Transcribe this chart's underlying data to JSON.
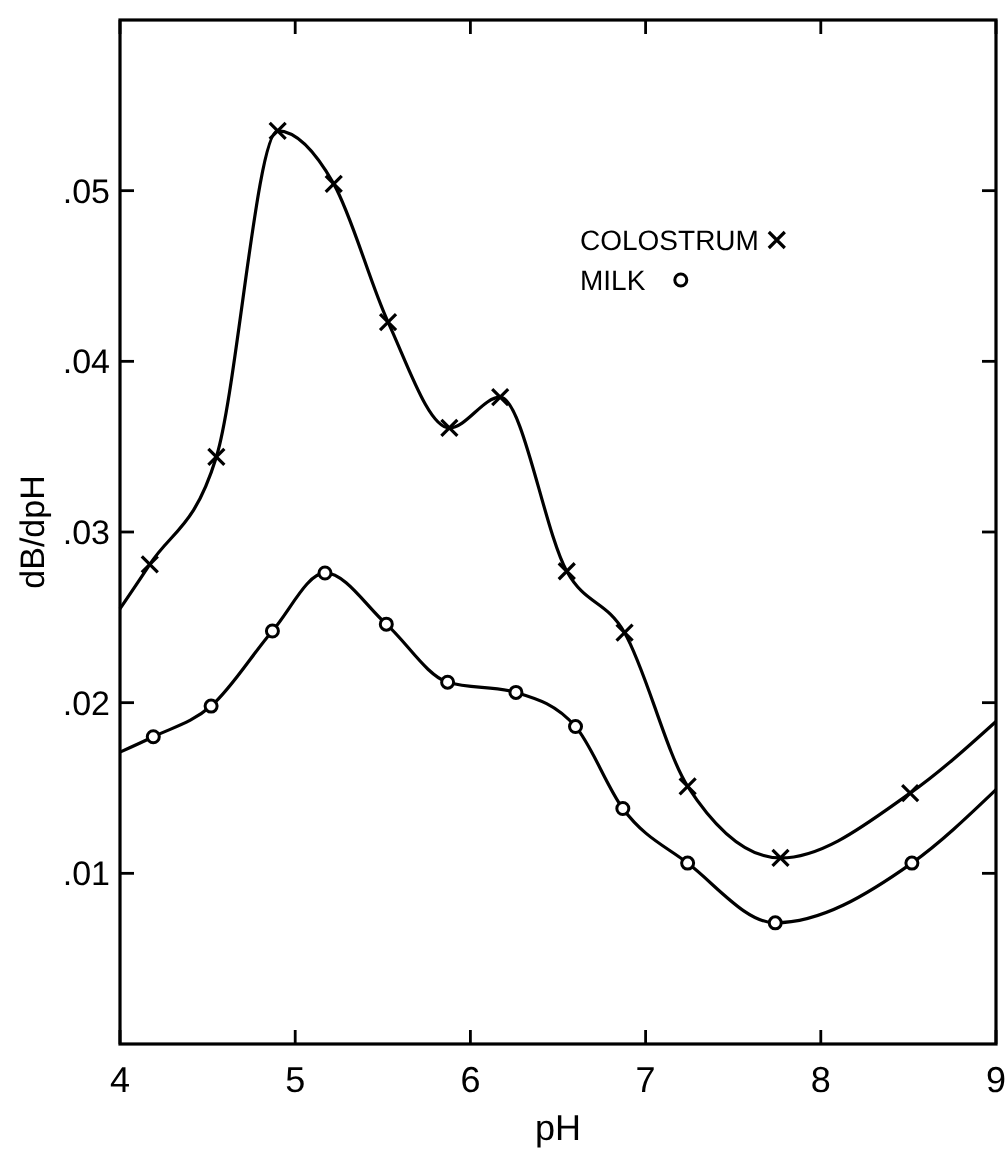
{
  "chart_data": {
    "type": "line",
    "xlabel": "pH",
    "ylabel": "dB/dpH",
    "xlim": [
      4,
      9
    ],
    "ylim": [
      0,
      0.06
    ],
    "xticks": [
      4,
      5,
      6,
      7,
      8,
      9
    ],
    "yticks": [
      {
        "value": 0.01,
        "label": ".01"
      },
      {
        "value": 0.02,
        "label": ".02"
      },
      {
        "value": 0.03,
        "label": ".03"
      },
      {
        "value": 0.04,
        "label": ".04"
      },
      {
        "value": 0.05,
        "label": ".05"
      }
    ],
    "grid": false,
    "legend": "top right",
    "line_style": "solid",
    "series": [
      {
        "marker": "none",
        "color": "#000000",
        "x": [
          4,
          4.17,
          4.55,
          4.9,
          5.22,
          5.53,
          5.88,
          6.17,
          6.55,
          6.88,
          7.24,
          7.77,
          8.51,
          9
        ],
        "values": [
          0.0255,
          0.0281,
          0.0344,
          0.0535,
          0.0504,
          0.0423,
          0.0361,
          0.0379,
          0.0277,
          0.0241,
          0.0151,
          0.0109,
          0.0147,
          0.0189
        ]
      },
      {
        "marker": "none",
        "color": "#000000",
        "x": [
          4,
          4.19,
          4.52,
          4.87,
          5.17,
          5.52,
          5.87,
          6.26,
          6.6,
          6.87,
          7.24,
          7.74,
          8.52,
          9
        ],
        "values": [
          0.0171,
          0.018,
          0.0198,
          0.0242,
          0.0276,
          0.0246,
          0.0212,
          0.0206,
          0.0186,
          0.0138,
          0.0106,
          0.0071,
          0.0106,
          0.0149
        ]
      },
      {
        "type": "scatter",
        "name": "COLOSTRUM",
        "marker": "cross",
        "color": "#000000",
        "x": [
          4.17,
          4.55,
          4.9,
          5.22,
          5.53,
          5.88,
          6.17,
          6.55,
          6.88,
          7.24,
          7.77,
          8.51
        ],
        "values": [
          0.0281,
          0.0344,
          0.0535,
          0.0504,
          0.0423,
          0.0361,
          0.0379,
          0.0277,
          0.0241,
          0.0151,
          0.0109,
          0.0147
        ]
      },
      {
        "type": "scatter",
        "name": "MILK",
        "marker": "circle",
        "color": "#000000",
        "x": [
          4.19,
          4.52,
          4.87,
          5.17,
          5.52,
          5.87,
          6.26,
          6.6,
          6.87,
          7.24,
          7.74,
          8.52
        ],
        "values": [
          0.018,
          0.0198,
          0.0242,
          0.0276,
          0.0246,
          0.0212,
          0.0206,
          0.0186,
          0.0138,
          0.0106,
          0.0071,
          0.0106
        ]
      }
    ]
  }
}
